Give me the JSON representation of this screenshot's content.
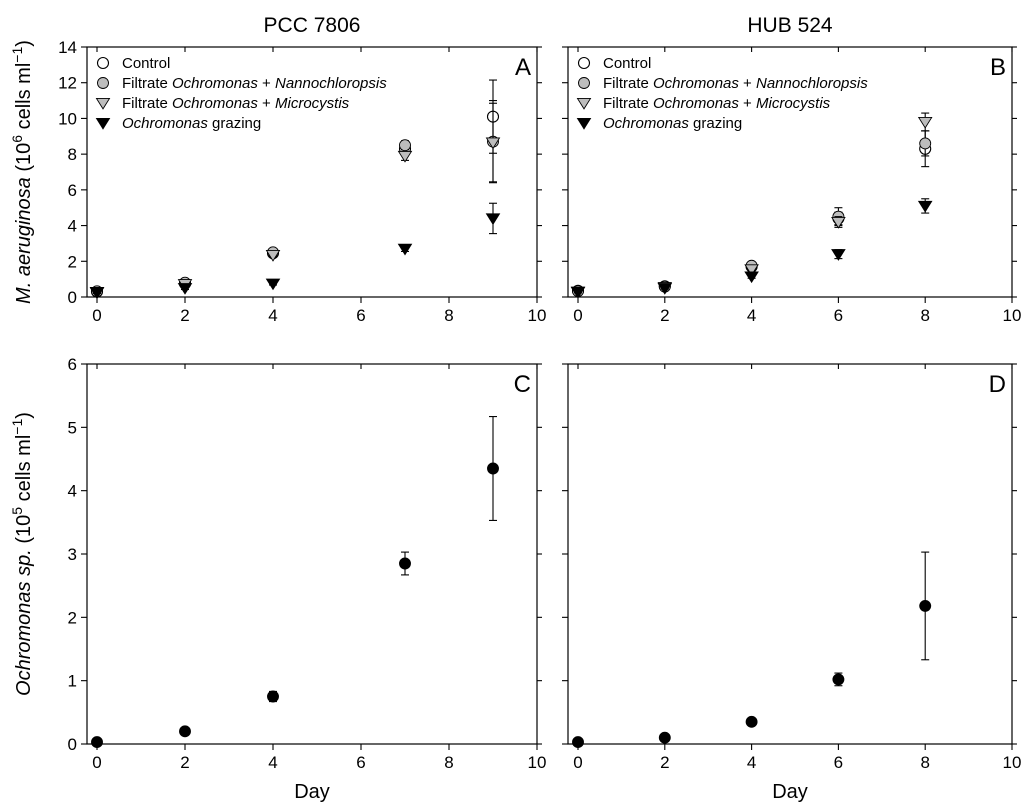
{
  "chart_data": [
    {
      "id": "A",
      "type": "scatter",
      "title": "PCC 7806",
      "panel_label": "A",
      "xlim": [
        0,
        10
      ],
      "x_ticks": [
        0,
        2,
        4,
        6,
        8,
        10
      ],
      "ylim": [
        0,
        14
      ],
      "y_ticks": [
        0,
        2,
        4,
        6,
        8,
        10,
        12,
        14
      ],
      "ylabel": "M. aeruginosa (10⁶ cells ml⁻¹)",
      "xlabel": "",
      "legend_position": "top-left",
      "series": [
        {
          "name": "Control",
          "marker": "circle-open",
          "points": [
            {
              "x": 0,
              "y": 0.3,
              "err": 0.05
            },
            {
              "x": 2,
              "y": 0.75,
              "err": 0.08
            },
            {
              "x": 4,
              "y": 2.45,
              "err": 0.1
            },
            {
              "x": 7,
              "y": 8.3,
              "err": 0.3
            },
            {
              "x": 9,
              "y": 10.1,
              "err": 2.05
            }
          ]
        },
        {
          "name": "Filtrate Ochromonas + Nannochloropsis",
          "marker": "circle-gray",
          "points": [
            {
              "x": 0,
              "y": 0.32,
              "err": 0.05
            },
            {
              "x": 2,
              "y": 0.8,
              "err": 0.08
            },
            {
              "x": 4,
              "y": 2.5,
              "err": 0.1
            },
            {
              "x": 7,
              "y": 8.5,
              "err": 0.25
            },
            {
              "x": 9,
              "y": 8.7,
              "err": 2.3
            }
          ]
        },
        {
          "name": "Filtrate Ochromonas + Microcystis",
          "marker": "triangle-gray",
          "points": [
            {
              "x": 0,
              "y": 0.28,
              "err": 0.05
            },
            {
              "x": 2,
              "y": 0.72,
              "err": 0.08
            },
            {
              "x": 4,
              "y": 2.35,
              "err": 0.1
            },
            {
              "x": 7,
              "y": 7.9,
              "err": 0.25
            },
            {
              "x": 9,
              "y": 8.65,
              "err": 2.2
            }
          ]
        },
        {
          "name": "Ochromonas grazing",
          "marker": "triangle-black",
          "points": [
            {
              "x": 0,
              "y": 0.25,
              "err": 0.05
            },
            {
              "x": 2,
              "y": 0.5,
              "err": 0.08
            },
            {
              "x": 4,
              "y": 0.75,
              "err": 0.08
            },
            {
              "x": 7,
              "y": 2.7,
              "err": 0.15
            },
            {
              "x": 9,
              "y": 4.4,
              "err": 0.85
            }
          ]
        }
      ]
    },
    {
      "id": "B",
      "type": "scatter",
      "title": "HUB 524",
      "panel_label": "B",
      "xlim": [
        0,
        10
      ],
      "x_ticks": [
        0,
        2,
        4,
        6,
        8,
        10
      ],
      "ylim": [
        0,
        14
      ],
      "y_ticks": [
        0,
        2,
        4,
        6,
        8,
        10,
        12,
        14
      ],
      "ylabel": "",
      "xlabel": "",
      "legend_position": "top-left",
      "series": [
        {
          "name": "Control",
          "marker": "circle-open",
          "points": [
            {
              "x": 0,
              "y": 0.35,
              "err": 0.05
            },
            {
              "x": 2,
              "y": 0.6,
              "err": 0.06
            },
            {
              "x": 4,
              "y": 1.7,
              "err": 0.12
            },
            {
              "x": 6,
              "y": 4.4,
              "err": 0.35
            },
            {
              "x": 8,
              "y": 8.3,
              "err": 1.0
            }
          ]
        },
        {
          "name": "Filtrate Ochromonas + Nannochloropsis",
          "marker": "circle-gray",
          "points": [
            {
              "x": 0,
              "y": 0.33,
              "err": 0.05
            },
            {
              "x": 2,
              "y": 0.58,
              "err": 0.06
            },
            {
              "x": 4,
              "y": 1.75,
              "err": 0.12
            },
            {
              "x": 6,
              "y": 4.5,
              "err": 0.5
            },
            {
              "x": 8,
              "y": 8.6,
              "err": 0.7
            }
          ]
        },
        {
          "name": "Filtrate Ochromonas + Microcystis",
          "marker": "triangle-gray",
          "points": [
            {
              "x": 0,
              "y": 0.3,
              "err": 0.05
            },
            {
              "x": 2,
              "y": 0.55,
              "err": 0.06
            },
            {
              "x": 4,
              "y": 1.55,
              "err": 0.12
            },
            {
              "x": 6,
              "y": 4.2,
              "err": 0.3
            },
            {
              "x": 8,
              "y": 9.8,
              "err": 0.5
            }
          ]
        },
        {
          "name": "Ochromonas grazing",
          "marker": "triangle-black",
          "points": [
            {
              "x": 0,
              "y": 0.28,
              "err": 0.05
            },
            {
              "x": 2,
              "y": 0.5,
              "err": 0.06
            },
            {
              "x": 4,
              "y": 1.15,
              "err": 0.1
            },
            {
              "x": 6,
              "y": 2.4,
              "err": 0.25
            },
            {
              "x": 8,
              "y": 5.1,
              "err": 0.4
            }
          ]
        }
      ]
    },
    {
      "id": "C",
      "type": "scatter",
      "title": "",
      "panel_label": "C",
      "xlim": [
        0,
        10
      ],
      "x_ticks": [
        0,
        2,
        4,
        6,
        8,
        10
      ],
      "ylim": [
        0,
        6
      ],
      "y_ticks": [
        0,
        1,
        2,
        3,
        4,
        5,
        6
      ],
      "ylabel": "Ochromonas sp. (10⁵ cells ml⁻¹)",
      "xlabel": "Day",
      "series": [
        {
          "name": "",
          "marker": "circle-black",
          "points": [
            {
              "x": 0,
              "y": 0.03,
              "err": 0.02
            },
            {
              "x": 2,
              "y": 0.2,
              "err": 0.03
            },
            {
              "x": 4,
              "y": 0.75,
              "err": 0.08
            },
            {
              "x": 7,
              "y": 2.85,
              "err": 0.18
            },
            {
              "x": 9,
              "y": 4.35,
              "err": 0.82
            }
          ]
        }
      ]
    },
    {
      "id": "D",
      "type": "scatter",
      "title": "",
      "panel_label": "D",
      "xlim": [
        0,
        10
      ],
      "x_ticks": [
        0,
        2,
        4,
        6,
        8,
        10
      ],
      "ylim": [
        0,
        6
      ],
      "y_ticks": [
        0,
        1,
        2,
        3,
        4,
        5,
        6
      ],
      "ylabel": "",
      "xlabel": "Day",
      "series": [
        {
          "name": "",
          "marker": "circle-black",
          "points": [
            {
              "x": 0,
              "y": 0.03,
              "err": 0.02
            },
            {
              "x": 2,
              "y": 0.1,
              "err": 0.02
            },
            {
              "x": 4,
              "y": 0.35,
              "err": 0.04
            },
            {
              "x": 6,
              "y": 1.02,
              "err": 0.1
            },
            {
              "x": 8,
              "y": 2.18,
              "err": 0.85
            }
          ]
        }
      ]
    }
  ],
  "legend": [
    {
      "marker": "circle-open",
      "parts": [
        {
          "text": "Control",
          "italic": false
        }
      ]
    },
    {
      "marker": "circle-gray",
      "parts": [
        {
          "text": "Filtrate ",
          "italic": false
        },
        {
          "text": "Ochromonas",
          "italic": true
        },
        {
          "text": " + ",
          "italic": false
        },
        {
          "text": "Nannochloropsis",
          "italic": true
        }
      ]
    },
    {
      "marker": "triangle-gray",
      "parts": [
        {
          "text": "Filtrate ",
          "italic": false
        },
        {
          "text": "Ochromonas",
          "italic": true
        },
        {
          "text": " + ",
          "italic": false
        },
        {
          "text": "Microcystis",
          "italic": true
        }
      ]
    },
    {
      "marker": "triangle-black",
      "parts": [
        {
          "text": "Ochromonas",
          "italic": true
        },
        {
          "text": " grazing",
          "italic": false
        }
      ]
    }
  ],
  "ylabel_top": {
    "parts": [
      {
        "text": "M. aeruginosa",
        "italic": true
      },
      {
        "text": " (10",
        "italic": false
      },
      {
        "text": "6",
        "sup": true
      },
      {
        "text": " cells ml",
        "italic": false
      },
      {
        "text": "−1",
        "sup": true
      },
      {
        "text": ")",
        "italic": false
      }
    ]
  },
  "ylabel_bottom": {
    "parts": [
      {
        "text": "Ochromonas sp.",
        "italic": true
      },
      {
        "text": " (10",
        "italic": false
      },
      {
        "text": "5",
        "sup": true
      },
      {
        "text": " cells ml",
        "italic": false
      },
      {
        "text": "−1",
        "sup": true
      },
      {
        "text": ")",
        "italic": false
      }
    ]
  },
  "colors": {
    "gray_fill": "#bdbdbd",
    "black": "#000000",
    "white": "#ffffff"
  }
}
